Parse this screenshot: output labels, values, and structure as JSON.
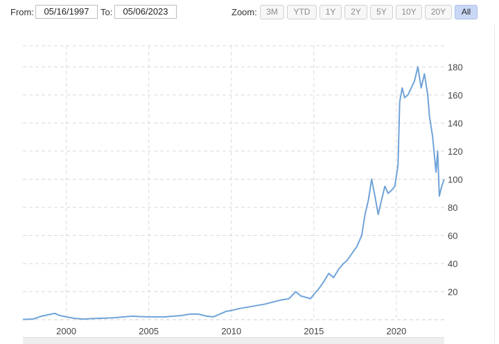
{
  "range": {
    "from_label": "From:",
    "from_value": "05/16/1997",
    "to_label": "To:",
    "to_value": "05/06/2023"
  },
  "zoom": {
    "label": "Zoom:",
    "buttons": [
      "3M",
      "YTD",
      "1Y",
      "2Y",
      "5Y",
      "10Y",
      "20Y",
      "All"
    ],
    "active": "All"
  },
  "chart_data": {
    "type": "line",
    "title": "",
    "xlabel": "",
    "ylabel": "",
    "xlim": [
      1997.37,
      2022.9
    ],
    "ylim": [
      0,
      195
    ],
    "x_ticks": [
      2000,
      2005,
      2010,
      2015,
      2020
    ],
    "y_ticks": [
      20,
      40,
      60,
      80,
      100,
      120,
      140,
      160,
      180
    ],
    "grid": "dashed, vertical and horizontal",
    "line_color": "#6fa3d8",
    "series": [
      {
        "name": "",
        "x": [
          1997.37,
          1998.0,
          1998.5,
          1998.9,
          1999.3,
          1999.6,
          2000.0,
          2000.5,
          2001.0,
          2001.5,
          2002.0,
          2002.5,
          2003.0,
          2003.5,
          2004.0,
          2004.5,
          2005.0,
          2005.5,
          2006.0,
          2006.5,
          2007.0,
          2007.5,
          2008.0,
          2008.5,
          2008.9,
          2009.3,
          2009.7,
          2010.0,
          2010.5,
          2011.0,
          2011.5,
          2012.0,
          2012.5,
          2013.0,
          2013.5,
          2013.9,
          2014.2,
          2014.5,
          2014.8,
          2015.0,
          2015.3,
          2015.6,
          2015.9,
          2016.2,
          2016.5,
          2016.8,
          2017.0,
          2017.3,
          2017.6,
          2017.9,
          2018.1,
          2018.3,
          2018.5,
          2018.7,
          2018.9,
          2019.1,
          2019.3,
          2019.5,
          2019.7,
          2019.9,
          2020.1,
          2020.2,
          2020.35,
          2020.5,
          2020.7,
          2020.9,
          2021.1,
          2021.3,
          2021.5,
          2021.7,
          2021.9,
          2022.0,
          2022.2,
          2022.4,
          2022.5,
          2022.6,
          2022.75,
          2022.9
        ],
        "y": [
          0.2,
          0.5,
          2.5,
          3.5,
          4.5,
          3.0,
          2.0,
          1.0,
          0.5,
          0.8,
          1.0,
          1.2,
          1.5,
          2.0,
          2.5,
          2.2,
          2.0,
          2.0,
          2.0,
          2.5,
          3.0,
          4.0,
          4.0,
          2.5,
          2.0,
          4.0,
          6.0,
          6.5,
          8.0,
          9.0,
          10.0,
          11.0,
          12.5,
          14.0,
          15.0,
          20.0,
          17.0,
          16.0,
          15.0,
          18.0,
          22.0,
          27.0,
          33.0,
          30.0,
          36.0,
          40.0,
          42.0,
          47.0,
          52.0,
          60.0,
          75.0,
          85.0,
          100.0,
          88.0,
          75.0,
          85.0,
          95.0,
          90.0,
          92.0,
          95.0,
          110.0,
          155.0,
          165.0,
          158.0,
          160.0,
          165.0,
          170.0,
          180.0,
          165.0,
          175.0,
          160.0,
          145.0,
          130.0,
          105.0,
          120.0,
          88.0,
          95.0,
          100.0
        ]
      }
    ]
  }
}
